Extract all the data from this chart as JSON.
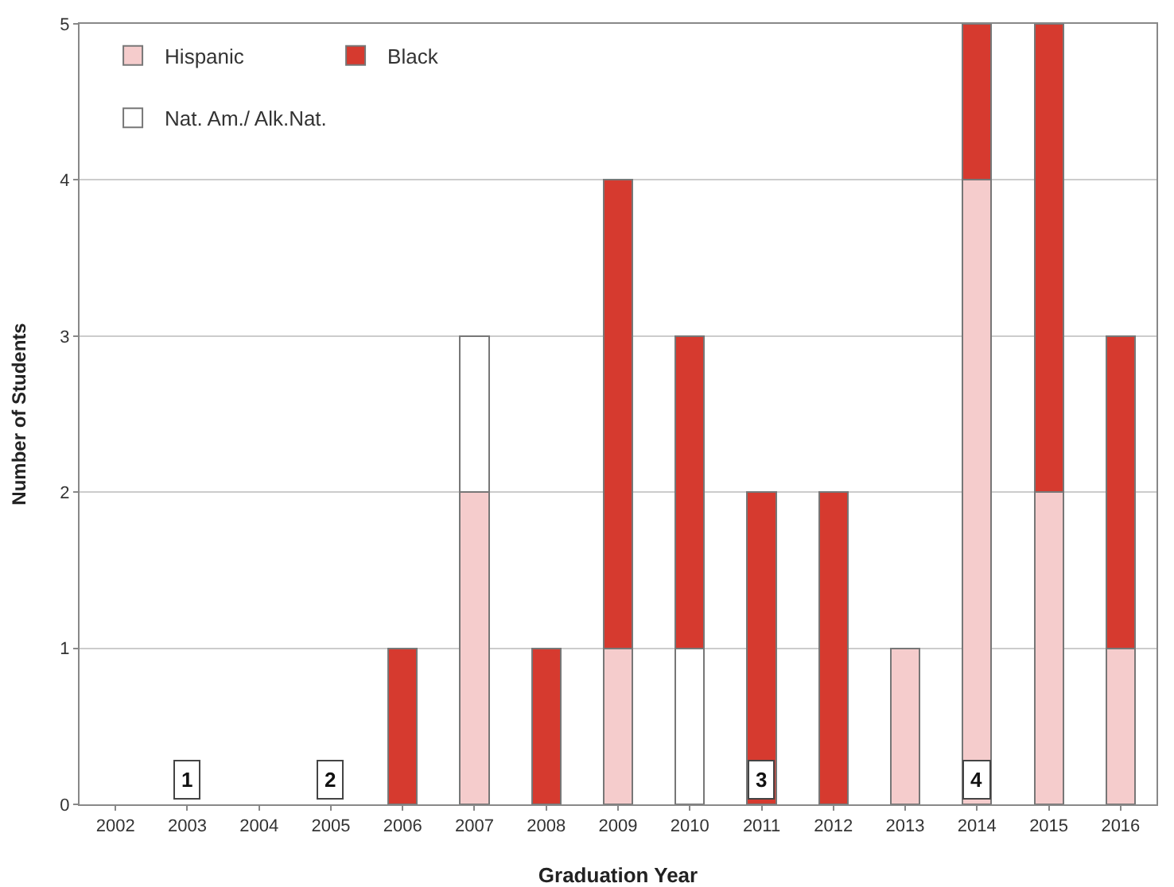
{
  "chart_data": {
    "type": "bar",
    "stacked": true,
    "xlabel": "Graduation Year",
    "ylabel": "Number of Students",
    "categories": [
      "2002",
      "2003",
      "2004",
      "2005",
      "2006",
      "2007",
      "2008",
      "2009",
      "2010",
      "2011",
      "2012",
      "2013",
      "2014",
      "2015",
      "2016"
    ],
    "series": [
      {
        "name": "Hispanic",
        "color": "#f5cccc",
        "values": [
          0,
          0,
          0,
          0,
          0,
          2,
          0,
          1,
          0,
          0,
          0,
          1,
          4,
          2,
          1
        ]
      },
      {
        "name": "Nat. Am./ Alk.Nat.",
        "color": "#ffffff",
        "values": [
          0,
          0,
          0,
          0,
          0,
          1,
          0,
          0,
          1,
          0,
          0,
          0,
          0,
          0,
          0
        ]
      },
      {
        "name": "Black",
        "color": "#d63a2f",
        "values": [
          0,
          0,
          0,
          0,
          1,
          0,
          1,
          3,
          2,
          2,
          2,
          0,
          1,
          3,
          2
        ]
      }
    ],
    "ylim": [
      0,
      5
    ],
    "yticks": [
      0,
      1,
      2,
      3,
      4,
      5
    ],
    "grid": "y",
    "legend": "top left",
    "annotations": [
      {
        "text": "1",
        "x": "2003",
        "y": 0
      },
      {
        "text": "2",
        "x": "2005",
        "y": 0
      },
      {
        "text": "3",
        "x": "2011",
        "y": 0
      },
      {
        "text": "4",
        "x": "2014",
        "y": 0
      }
    ]
  }
}
